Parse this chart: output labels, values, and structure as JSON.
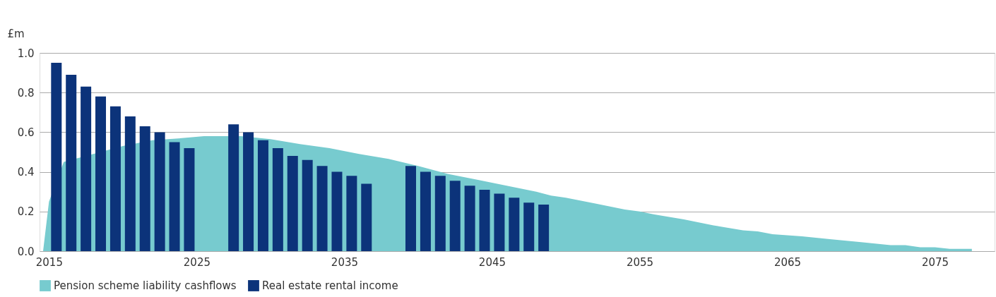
{
  "chart_data": {
    "type": "bar",
    "ylabel": "£m",
    "xlim": [
      2014.6,
      2078.8
    ],
    "xticks": [
      2015,
      2025,
      2035,
      2045,
      2055,
      2065,
      2075
    ],
    "ylim": [
      0,
      1.0
    ],
    "yticks": [
      {
        "value": 0,
        "label": "0.0"
      },
      {
        "value": 0.2,
        "label": "0.2"
      },
      {
        "value": 0.4,
        "label": "0.4"
      },
      {
        "value": 0.6,
        "label": "0.6"
      },
      {
        "value": 0.8,
        "label": "0.8"
      },
      {
        "value": 1.0,
        "label": "1.0"
      }
    ],
    "grid": "y",
    "legend": "bottom",
    "series": [
      {
        "name": "Pension scheme liability cashflows",
        "type": "area",
        "color": "#77cbcf",
        "x": [
          2014.6,
          2015,
          2016,
          2018,
          2020,
          2022,
          2024,
          2025.5,
          2028,
          2030,
          2032,
          2034,
          2036,
          2038,
          2040,
          2042,
          2044,
          2046,
          2048,
          2049,
          2050,
          2052,
          2054,
          2055,
          2056,
          2058,
          2060,
          2062,
          2063,
          2064,
          2066,
          2068,
          2070,
          2072,
          2073,
          2074,
          2075,
          2076,
          2077.5
        ],
        "values": [
          0,
          0.25,
          0.45,
          0.49,
          0.53,
          0.56,
          0.57,
          0.58,
          0.58,
          0.565,
          0.54,
          0.52,
          0.49,
          0.465,
          0.43,
          0.39,
          0.36,
          0.33,
          0.3,
          0.28,
          0.27,
          0.24,
          0.21,
          0.2,
          0.185,
          0.16,
          0.13,
          0.105,
          0.1,
          0.085,
          0.075,
          0.06,
          0.045,
          0.03,
          0.03,
          0.02,
          0.02,
          0.012,
          0.012
        ]
      },
      {
        "name": "Real estate rental income",
        "color": "#0c337a",
        "x": [
          2015.5,
          2016.5,
          2017.5,
          2018.5,
          2019.5,
          2020.5,
          2021.5,
          2022.5,
          2023.5,
          2024.5,
          2027.5,
          2028.5,
          2029.5,
          2030.5,
          2031.5,
          2032.5,
          2033.5,
          2034.5,
          2035.5,
          2036.5,
          2039.5,
          2040.5,
          2041.5,
          2042.5,
          2043.5,
          2044.5,
          2045.5,
          2046.5,
          2047.5,
          2048.5
        ],
        "values": [
          0.95,
          0.89,
          0.83,
          0.78,
          0.73,
          0.68,
          0.63,
          0.6,
          0.55,
          0.52,
          0.64,
          0.6,
          0.56,
          0.52,
          0.48,
          0.46,
          0.43,
          0.4,
          0.38,
          0.34,
          0.43,
          0.4,
          0.38,
          0.355,
          0.33,
          0.31,
          0.29,
          0.27,
          0.245,
          0.235
        ]
      }
    ]
  }
}
